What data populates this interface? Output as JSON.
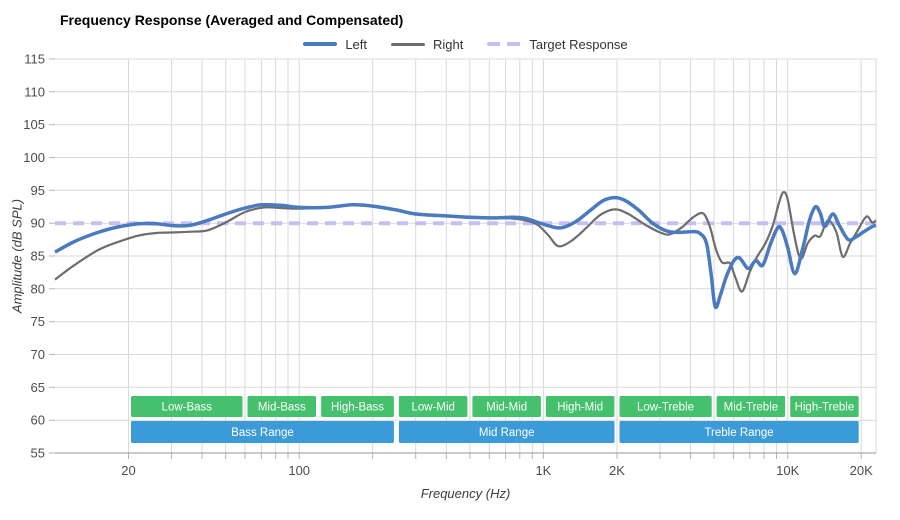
{
  "title": "Frequency Response (Averaged and Compensated)",
  "legend": {
    "items": [
      {
        "label": "Left",
        "color": "#4a7abf",
        "style": "solid-thick"
      },
      {
        "label": "Right",
        "color": "#6d6d6d",
        "style": "solid-thin"
      },
      {
        "label": "Target Response",
        "color": "#c5c0f3",
        "style": "dashed"
      }
    ]
  },
  "chart_data": {
    "type": "line",
    "x_scale": "log",
    "title": "Frequency Response (Averaged and Compensated)",
    "xlabel": "Frequency (Hz)",
    "ylabel": "Amplitude (dB SPL)",
    "xlim": [
      10,
      23000
    ],
    "ylim": [
      55,
      115
    ],
    "grid": true,
    "legend_position": "top-center",
    "grid_color": "#d9d9d9",
    "axis_color": "#9a9a9a",
    "tick_color": "#b5b5b5",
    "tick_label_color": "#4d4d4d",
    "y_ticks": [
      55,
      60,
      65,
      70,
      75,
      80,
      85,
      90,
      95,
      100,
      105,
      110,
      115
    ],
    "x_gridlines": [
      20,
      30,
      40,
      50,
      60,
      70,
      80,
      90,
      100,
      200,
      300,
      400,
      500,
      600,
      700,
      800,
      900,
      1000,
      2000,
      3000,
      4000,
      5000,
      6000,
      7000,
      8000,
      9000,
      10000,
      20000
    ],
    "x_tick_labels": [
      {
        "f": 20,
        "label": "20"
      },
      {
        "f": 100,
        "label": "100"
      },
      {
        "f": 1000,
        "label": "1K"
      },
      {
        "f": 2000,
        "label": "2K"
      },
      {
        "f": 10000,
        "label": "10K"
      },
      {
        "f": 20000,
        "label": "20K"
      }
    ],
    "series": [
      {
        "name": "Left",
        "color": "#4a7abf",
        "width": 3.5,
        "dash": null,
        "points": [
          [
            10,
            85.6
          ],
          [
            12,
            87.2
          ],
          [
            15,
            88.6
          ],
          [
            18,
            89.4
          ],
          [
            22,
            89.9
          ],
          [
            26,
            89.9
          ],
          [
            31,
            89.6
          ],
          [
            36,
            89.7
          ],
          [
            42,
            90.4
          ],
          [
            50,
            91.4
          ],
          [
            60,
            92.3
          ],
          [
            70,
            92.8
          ],
          [
            85,
            92.7
          ],
          [
            100,
            92.4
          ],
          [
            130,
            92.4
          ],
          [
            165,
            92.8
          ],
          [
            200,
            92.6
          ],
          [
            250,
            92.0
          ],
          [
            300,
            91.4
          ],
          [
            400,
            91.1
          ],
          [
            500,
            90.9
          ],
          [
            620,
            90.8
          ],
          [
            750,
            90.9
          ],
          [
            850,
            90.7
          ],
          [
            950,
            90.1
          ],
          [
            1050,
            89.6
          ],
          [
            1180,
            89.3
          ],
          [
            1350,
            90.2
          ],
          [
            1550,
            91.9
          ],
          [
            1750,
            93.4
          ],
          [
            1950,
            93.9
          ],
          [
            2150,
            93.5
          ],
          [
            2450,
            92.0
          ],
          [
            2800,
            90.0
          ],
          [
            3200,
            88.8
          ],
          [
            3600,
            88.6
          ],
          [
            4000,
            88.7
          ],
          [
            4350,
            88.5
          ],
          [
            4650,
            87.0
          ],
          [
            4850,
            82.5
          ],
          [
            5050,
            77.3
          ],
          [
            5300,
            79.0
          ],
          [
            5600,
            81.8
          ],
          [
            6000,
            84.2
          ],
          [
            6350,
            84.7
          ],
          [
            6900,
            83.1
          ],
          [
            7400,
            84.3
          ],
          [
            7900,
            83.6
          ],
          [
            8500,
            86.8
          ],
          [
            9100,
            89.3
          ],
          [
            9500,
            88.9
          ],
          [
            10000,
            86.3
          ],
          [
            10700,
            82.3
          ],
          [
            11500,
            86.0
          ],
          [
            12300,
            90.5
          ],
          [
            13000,
            92.5
          ],
          [
            13600,
            91.5
          ],
          [
            14200,
            89.5
          ],
          [
            15300,
            91.4
          ],
          [
            16300,
            89.6
          ],
          [
            17700,
            87.5
          ],
          [
            19000,
            87.9
          ],
          [
            20500,
            88.7
          ],
          [
            22000,
            89.4
          ],
          [
            23000,
            89.7
          ]
        ]
      },
      {
        "name": "Right",
        "color": "#6d6d6d",
        "width": 2.2,
        "dash": null,
        "points": [
          [
            10,
            81.4
          ],
          [
            12,
            83.6
          ],
          [
            15,
            85.9
          ],
          [
            18,
            87.1
          ],
          [
            22,
            88.1
          ],
          [
            26,
            88.5
          ],
          [
            31,
            88.6
          ],
          [
            36,
            88.7
          ],
          [
            42,
            88.9
          ],
          [
            50,
            90.1
          ],
          [
            60,
            91.7
          ],
          [
            72,
            92.4
          ],
          [
            85,
            92.3
          ],
          [
            100,
            92.2
          ],
          [
            130,
            92.4
          ],
          [
            165,
            92.8
          ],
          [
            200,
            92.6
          ],
          [
            250,
            92.0
          ],
          [
            300,
            91.4
          ],
          [
            400,
            91.1
          ],
          [
            500,
            90.8
          ],
          [
            620,
            90.8
          ],
          [
            750,
            90.7
          ],
          [
            850,
            90.4
          ],
          [
            950,
            89.7
          ],
          [
            1050,
            88.1
          ],
          [
            1150,
            86.5
          ],
          [
            1300,
            87.3
          ],
          [
            1500,
            89.3
          ],
          [
            1700,
            91.2
          ],
          [
            1950,
            92.1
          ],
          [
            2200,
            91.5
          ],
          [
            2600,
            89.8
          ],
          [
            3000,
            88.6
          ],
          [
            3300,
            88.3
          ],
          [
            3700,
            89.4
          ],
          [
            4100,
            90.9
          ],
          [
            4500,
            91.5
          ],
          [
            4800,
            89.5
          ],
          [
            5100,
            85.9
          ],
          [
            5400,
            84.0
          ],
          [
            5800,
            83.9
          ],
          [
            6100,
            81.8
          ],
          [
            6500,
            79.6
          ],
          [
            7000,
            82.6
          ],
          [
            7500,
            84.9
          ],
          [
            8100,
            86.9
          ],
          [
            8700,
            89.7
          ],
          [
            9200,
            93.0
          ],
          [
            9600,
            94.7
          ],
          [
            10000,
            93.6
          ],
          [
            10600,
            88.5
          ],
          [
            11300,
            84.6
          ],
          [
            12100,
            87.0
          ],
          [
            12900,
            88.1
          ],
          [
            13600,
            88.0
          ],
          [
            14600,
            90.4
          ],
          [
            15800,
            88.7
          ],
          [
            16800,
            84.9
          ],
          [
            18000,
            86.9
          ],
          [
            19300,
            88.8
          ],
          [
            21000,
            91.0
          ],
          [
            22200,
            90.1
          ],
          [
            23000,
            90.4
          ]
        ]
      },
      {
        "name": "Target Response",
        "color": "#c5c0f3",
        "width": 4,
        "dash": [
          11,
          7
        ],
        "points": [
          [
            10,
            90
          ],
          [
            23000,
            90
          ]
        ]
      }
    ],
    "bands": {
      "sub_color": "#45c16d",
      "main_color": "#3b9ad8",
      "label_color": "#ffffff",
      "sub": [
        {
          "label": "Low-Bass",
          "range": [
            20,
            60
          ]
        },
        {
          "label": "Mid-Bass",
          "range": [
            60,
            120
          ]
        },
        {
          "label": "High-Bass",
          "range": [
            120,
            250
          ]
        },
        {
          "label": "Low-Mid",
          "range": [
            250,
            500
          ]
        },
        {
          "label": "Mid-Mid",
          "range": [
            500,
            1000
          ]
        },
        {
          "label": "High-Mid",
          "range": [
            1000,
            2000
          ]
        },
        {
          "label": "Low-Treble",
          "range": [
            2000,
            5000
          ]
        },
        {
          "label": "Mid-Treble",
          "range": [
            5000,
            10000
          ]
        },
        {
          "label": "High-Treble",
          "range": [
            10000,
            20000
          ]
        }
      ],
      "main": [
        {
          "label": "Bass Range",
          "range": [
            20,
            250
          ]
        },
        {
          "label": "Mid Range",
          "range": [
            250,
            2000
          ]
        },
        {
          "label": "Treble Range",
          "range": [
            2000,
            20000
          ]
        }
      ]
    }
  }
}
